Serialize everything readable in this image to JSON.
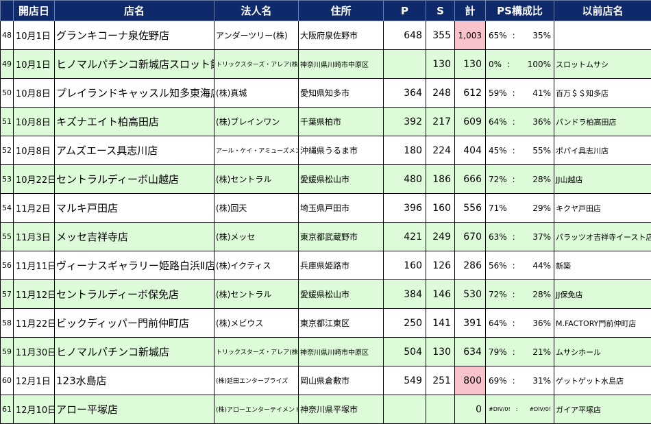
{
  "header": {
    "idx": "",
    "date": "開店日",
    "store": "店名",
    "corp": "法人名",
    "address": "住所",
    "p": "P",
    "s": "S",
    "total": "計",
    "ratio": "PS構成比",
    "prev": "以前店名"
  },
  "rows": [
    {
      "idx": "48",
      "date": "10月1日",
      "store": "グランキコーナ泉佐野店",
      "corp": "アンダーツリー(株)",
      "address": "大阪府泉佐野市",
      "p": "648",
      "s": "355",
      "total": "1,003",
      "ratio_p": "65%",
      "ratio_sep": ":",
      "ratio_s": "35%",
      "prev": ""
    },
    {
      "idx": "49",
      "date": "10月1日",
      "store": "ヒノマルパチンコ新城店スロット館",
      "corp": "トリックスターズ・アレア(株)",
      "address": "神奈川県川崎市中原区",
      "p": "",
      "s": "130",
      "total": "130",
      "ratio_p": "0%",
      "ratio_sep": ":",
      "ratio_s": "100%",
      "prev": "スロットムサシ"
    },
    {
      "idx": "50",
      "date": "10月8日",
      "store": "プレイランドキャッスル知多東海店",
      "corp": "(株)真城",
      "address": "愛知県知多市",
      "p": "364",
      "s": "248",
      "total": "612",
      "ratio_p": "59%",
      "ratio_sep": ":",
      "ratio_s": "41%",
      "prev": "百万＄＄知多店"
    },
    {
      "idx": "51",
      "date": "10月8日",
      "store": "キズナエイト柏高田店",
      "corp": "(株)ブレインワン",
      "address": "千葉県柏市",
      "p": "392",
      "s": "217",
      "total": "609",
      "ratio_p": "64%",
      "ratio_sep": ":",
      "ratio_s": "36%",
      "prev": "パンドラ柏高田店"
    },
    {
      "idx": "52",
      "date": "10月8日",
      "store": "アムズエース具志川店",
      "corp": "アール・ケイ・アミューズメント(株)",
      "address": "沖縄県うるま市",
      "p": "180",
      "s": "224",
      "total": "404",
      "ratio_p": "45%",
      "ratio_sep": ":",
      "ratio_s": "55%",
      "prev": "ポパイ具志川店"
    },
    {
      "idx": "53",
      "date": "10月22日",
      "store": "セントラルディーボ山越店",
      "corp": "(株)セントラル",
      "address": "愛媛県松山市",
      "p": "480",
      "s": "186",
      "total": "666",
      "ratio_p": "72%",
      "ratio_sep": ":",
      "ratio_s": "28%",
      "prev": "JJ山越店"
    },
    {
      "idx": "54",
      "date": "11月2日",
      "store": "マルキ戸田店",
      "corp": "(株)回天",
      "address": "埼玉県戸田市",
      "p": "396",
      "s": "160",
      "total": "556",
      "ratio_p": "71%",
      "ratio_sep": "",
      "ratio_s": "29%",
      "prev": "キクヤ戸田店"
    },
    {
      "idx": "55",
      "date": "11月3日",
      "store": "メッセ吉祥寺店",
      "corp": "(株)メッセ",
      "address": "東京都武蔵野市",
      "p": "421",
      "s": "249",
      "total": "670",
      "ratio_p": "63%",
      "ratio_sep": ":",
      "ratio_s": "37%",
      "prev": "パラッツオ吉祥寺イースト店"
    },
    {
      "idx": "56",
      "date": "11月11日",
      "store": "ヴィーナスギャラリー姫路白浜Ⅱ店",
      "corp": "(株)イクティス",
      "address": "兵庫県姫路市",
      "p": "160",
      "s": "126",
      "total": "286",
      "ratio_p": "56%",
      "ratio_sep": ":",
      "ratio_s": "44%",
      "prev": "新築"
    },
    {
      "idx": "57",
      "date": "11月12日",
      "store": "セントラルディーボ保免店",
      "corp": "(株)セントラル",
      "address": "愛媛県松山市",
      "p": "384",
      "s": "146",
      "total": "530",
      "ratio_p": "72%",
      "ratio_sep": ":",
      "ratio_s": "28%",
      "prev": "JJ保免店"
    },
    {
      "idx": "58",
      "date": "11月22日",
      "store": "ビックディッパー門前仲町店",
      "corp": "(株)メビウス",
      "address": "東京都江東区",
      "p": "250",
      "s": "141",
      "total": "391",
      "ratio_p": "64%",
      "ratio_sep": ":",
      "ratio_s": "36%",
      "prev": "M.FACTORY門前仲町店"
    },
    {
      "idx": "59",
      "date": "11月30日",
      "store": "ヒノマルパチンコ新城店",
      "corp": "トリックスターズ・アレア(株)",
      "address": "神奈川県川崎市中原区",
      "p": "504",
      "s": "130",
      "total": "634",
      "ratio_p": "79%",
      "ratio_sep": ":",
      "ratio_s": "21%",
      "prev": "ムサシホール"
    },
    {
      "idx": "60",
      "date": "12月1日",
      "store": "123水島店",
      "corp": "(株)延田エンタープライズ",
      "address": "岡山県倉敷市",
      "p": "549",
      "s": "251",
      "total": "800",
      "ratio_p": "69%",
      "ratio_sep": ":",
      "ratio_s": "31%",
      "prev": "ゲットゲット水島店"
    },
    {
      "idx": "61",
      "date": "12月10日",
      "store": "アロー平塚店",
      "corp": "(株)アローエンターテイメント",
      "address": "神奈川県平塚市",
      "p": "",
      "s": "",
      "total": "0",
      "ratio_p": "#DIV/0!",
      "ratio_sep": ":",
      "ratio_s": "#DIV/0!",
      "prev": "ガイア平塚店"
    }
  ],
  "highlight_color": "#f9c3cc",
  "header_color": "#0f2a6b",
  "alt_row_color": "#ddfbd8"
}
